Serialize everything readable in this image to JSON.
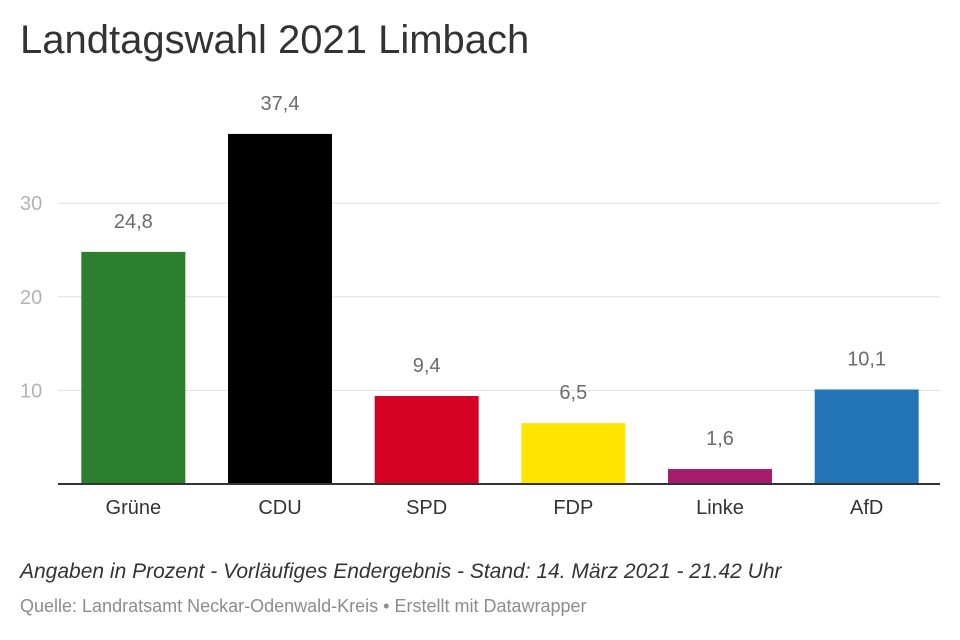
{
  "chart_data": {
    "type": "bar",
    "title": "Landtagswahl 2021 Limbach",
    "categories": [
      "Grüne",
      "CDU",
      "SPD",
      "FDP",
      "Linke",
      "AfD"
    ],
    "values": [
      24.8,
      37.4,
      9.4,
      6.5,
      1.6,
      10.1
    ],
    "value_labels": [
      "24,8",
      "37,4",
      "9,4",
      "6,5",
      "1,6",
      "10,1"
    ],
    "colors": [
      "#2c7f2c",
      "#000000",
      "#d60022",
      "#ffe500",
      "#a51e6e",
      "#2475b8"
    ],
    "yticks": [
      10,
      20,
      30
    ],
    "ylim": [
      0,
      37.4
    ],
    "grid": true,
    "xlabel": "",
    "ylabel": ""
  },
  "footer": {
    "note": "Angaben in Prozent - Vorläufiges Endergebnis - Stand: 14. März 2021 - 21.42 Uhr",
    "source": "Quelle: Landratsamt Neckar-Odenwald-Kreis • Erstellt mit Datawrapper"
  }
}
